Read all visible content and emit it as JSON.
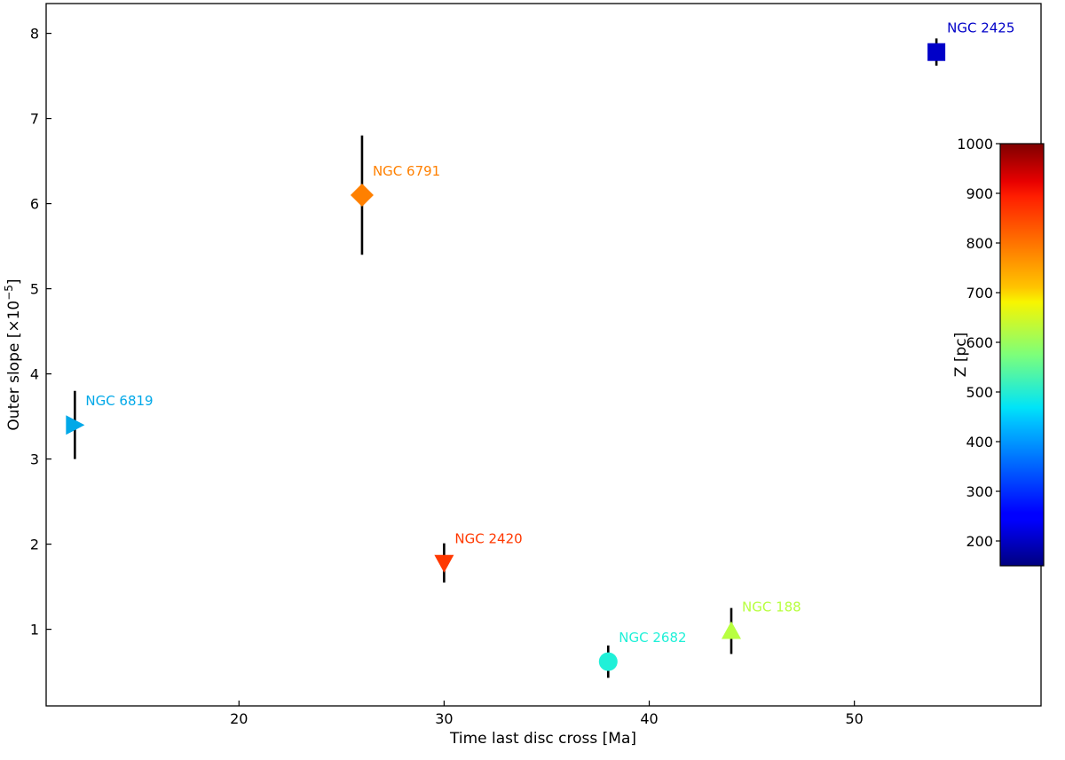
{
  "chart_data": {
    "type": "scatter",
    "xlabel": "Time last disc cross [Ma]",
    "ylabel_prefix": "Outer slope [×10",
    "ylabel_exp": "−5",
    "ylabel_suffix": "]",
    "xlim": [
      10.6,
      59.1
    ],
    "ylim": [
      0.1,
      8.35
    ],
    "xticks": [
      20,
      30,
      40,
      50
    ],
    "yticks": [
      1,
      2,
      3,
      4,
      5,
      6,
      7,
      8
    ],
    "grid": false,
    "colorbar": {
      "label": "Z [pc]",
      "min": 150,
      "max": 1000,
      "ticks": [
        200,
        300,
        400,
        500,
        600,
        700,
        800,
        900,
        1000
      ],
      "colormap": "jet",
      "placement": "inside-right"
    },
    "points": [
      {
        "name": "NGC 2425",
        "x": 54.0,
        "y": 7.78,
        "err": 0.16,
        "z": 230,
        "marker": "square",
        "color": "#0000c8"
      },
      {
        "name": "NGC 6791",
        "x": 26.0,
        "y": 6.1,
        "err": 0.7,
        "z": 760,
        "marker": "diamond",
        "color": "#ff8000"
      },
      {
        "name": "NGC 6819",
        "x": 12.0,
        "y": 3.4,
        "err": 0.4,
        "z": 400,
        "marker": "triangle-right",
        "color": "#00a8e8"
      },
      {
        "name": "NGC 2420",
        "x": 30.0,
        "y": 1.78,
        "err": 0.23,
        "z": 860,
        "marker": "triangle-down",
        "color": "#ff3800"
      },
      {
        "name": "NGC 2682",
        "x": 38.0,
        "y": 0.62,
        "err": 0.19,
        "z": 470,
        "marker": "circle",
        "color": "#20f0d8"
      },
      {
        "name": "NGC 188",
        "x": 44.0,
        "y": 0.98,
        "err": 0.27,
        "z": 620,
        "marker": "triangle-up",
        "color": "#b8ff40"
      }
    ]
  }
}
